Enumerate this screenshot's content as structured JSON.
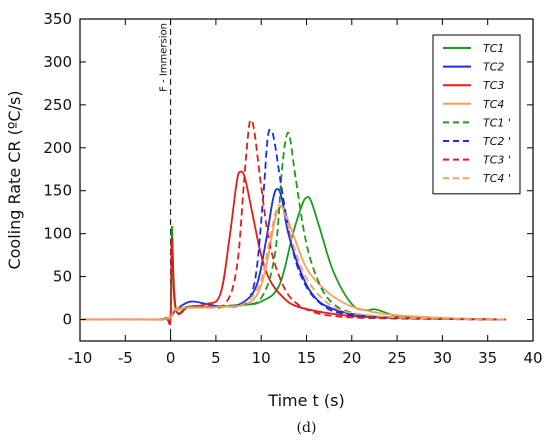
{
  "panel_label": "(d)",
  "chart_data": {
    "type": "line",
    "title": "",
    "xlabel": "Time  t (s)",
    "ylabel": "Cooling Rate  CR (ºC/s)",
    "xlim": [
      -10,
      40
    ],
    "ylim": [
      -25,
      350
    ],
    "xticks": [
      -10,
      -5,
      0,
      5,
      10,
      15,
      20,
      25,
      30,
      35,
      40
    ],
    "yticks": [
      0,
      50,
      100,
      150,
      200,
      250,
      300,
      350
    ],
    "xtick_labels": [
      "-10",
      "-5",
      "0",
      "5",
      "10",
      "15",
      "20",
      "25",
      "30",
      "35",
      "40"
    ],
    "ytick_labels": [
      "0",
      "50",
      "100",
      "150",
      "200",
      "250",
      "300",
      "350"
    ],
    "grid": false,
    "legend_position": "top-right",
    "annotations": [
      {
        "text": "F - Immersion",
        "x": 0,
        "orientation": "vertical",
        "line_style": "dashed"
      }
    ],
    "series": [
      {
        "name": "TC1",
        "color": "#1a9e1a",
        "dash": "solid",
        "x": [
          -10,
          -2,
          -0.5,
          0,
          0.15,
          0.5,
          2,
          5,
          8,
          10,
          12,
          13.5,
          14.5,
          15,
          15.5,
          16.5,
          18,
          20,
          21.5,
          22.5,
          23.5,
          25,
          28,
          32,
          37
        ],
        "y": [
          0,
          0,
          2,
          3,
          108,
          15,
          14,
          15,
          17,
          21,
          40,
          100,
          133,
          142,
          138,
          105,
          55,
          18,
          11,
          12,
          9,
          4,
          2,
          1,
          0
        ]
      },
      {
        "name": "TC2",
        "color": "#1a2ee6",
        "dash": "solid",
        "x": [
          -10,
          -2,
          -0.5,
          0,
          0.5,
          1.5,
          2.5,
          4,
          6,
          8,
          9.5,
          10.5,
          11.3,
          11.8,
          12.3,
          13,
          14.5,
          16,
          18,
          21,
          25,
          30,
          37
        ],
        "y": [
          0,
          0,
          1,
          3,
          10,
          18,
          21,
          18,
          15,
          20,
          40,
          90,
          140,
          152,
          140,
          100,
          52,
          25,
          12,
          5,
          2,
          1,
          0
        ]
      },
      {
        "name": "TC3",
        "color": "#e61a1a",
        "dash": "solid",
        "x": [
          -10,
          -2,
          -0.5,
          0,
          0.15,
          0.6,
          2,
          4,
          5.5,
          6.5,
          7.3,
          7.7,
          8.2,
          9,
          10,
          11,
          12.5,
          14,
          17,
          20,
          24,
          30,
          37
        ],
        "y": [
          0,
          0,
          1,
          3,
          95,
          12,
          15,
          18,
          30,
          95,
          160,
          172,
          165,
          125,
          75,
          45,
          25,
          15,
          8,
          4,
          2,
          1,
          0
        ]
      },
      {
        "name": "TC4",
        "color": "#f5a060",
        "dash": "solid",
        "x": [
          -10,
          -2,
          -0.5,
          0,
          0.5,
          2,
          4,
          6,
          8,
          9.5,
          10.5,
          11.5,
          12,
          12.5,
          13.5,
          15,
          17,
          19,
          21,
          24,
          28,
          32,
          37
        ],
        "y": [
          0,
          0,
          1,
          3,
          12,
          14,
          14,
          15,
          17,
          28,
          60,
          115,
          130,
          128,
          100,
          60,
          35,
          20,
          12,
          6,
          3,
          1,
          0
        ]
      },
      {
        "name": "TC1 '",
        "color": "#1a9e1a",
        "dash": "dashed",
        "x": [
          -10,
          -2,
          -0.5,
          0,
          0.5,
          2,
          4,
          6,
          8,
          10,
          11.5,
          12.3,
          12.8,
          13.2,
          13.8,
          15,
          16.5,
          18,
          20,
          23,
          28,
          37
        ],
        "y": [
          0,
          0,
          1,
          2,
          10,
          15,
          15,
          16,
          18,
          25,
          75,
          175,
          214,
          210,
          165,
          88,
          40,
          18,
          8,
          3,
          1,
          0
        ]
      },
      {
        "name": "TC2 '",
        "color": "#1a2ee6",
        "dash": "dashed",
        "x": [
          -10,
          -2,
          -0.5,
          0,
          0.5,
          2,
          4,
          6,
          8,
          9.3,
          10.2,
          10.7,
          11.1,
          11.5,
          12.3,
          13.5,
          15,
          17,
          19,
          22,
          27,
          37
        ],
        "y": [
          0,
          0,
          1,
          2,
          10,
          14,
          14,
          15,
          18,
          45,
          140,
          210,
          220,
          205,
          150,
          80,
          38,
          15,
          7,
          3,
          1,
          0
        ]
      },
      {
        "name": "TC3 '",
        "color": "#e61a1a",
        "dash": "dashed",
        "x": [
          -10,
          -2,
          -0.5,
          0,
          0.5,
          2,
          4,
          6,
          7.3,
          8.1,
          8.6,
          8.9,
          9.3,
          10,
          11,
          12.5,
          14,
          16,
          18,
          21,
          26,
          37
        ],
        "y": [
          0,
          0,
          1,
          2,
          10,
          14,
          15,
          18,
          60,
          160,
          220,
          232,
          215,
          155,
          85,
          38,
          18,
          8,
          4,
          2,
          1,
          0
        ]
      },
      {
        "name": "TC4 '",
        "color": "#f5a060",
        "dash": "dashed",
        "x": [
          -10,
          -2,
          -0.5,
          0,
          0.5,
          2,
          4,
          6,
          8,
          9.8,
          10.8,
          11.6,
          12.1,
          12.7,
          13.6,
          15,
          17,
          19,
          22,
          26,
          30,
          37
        ],
        "y": [
          0,
          0,
          1,
          2,
          10,
          14,
          14,
          15,
          18,
          40,
          85,
          125,
          133,
          120,
          85,
          48,
          22,
          10,
          5,
          2,
          1,
          0
        ]
      }
    ]
  }
}
